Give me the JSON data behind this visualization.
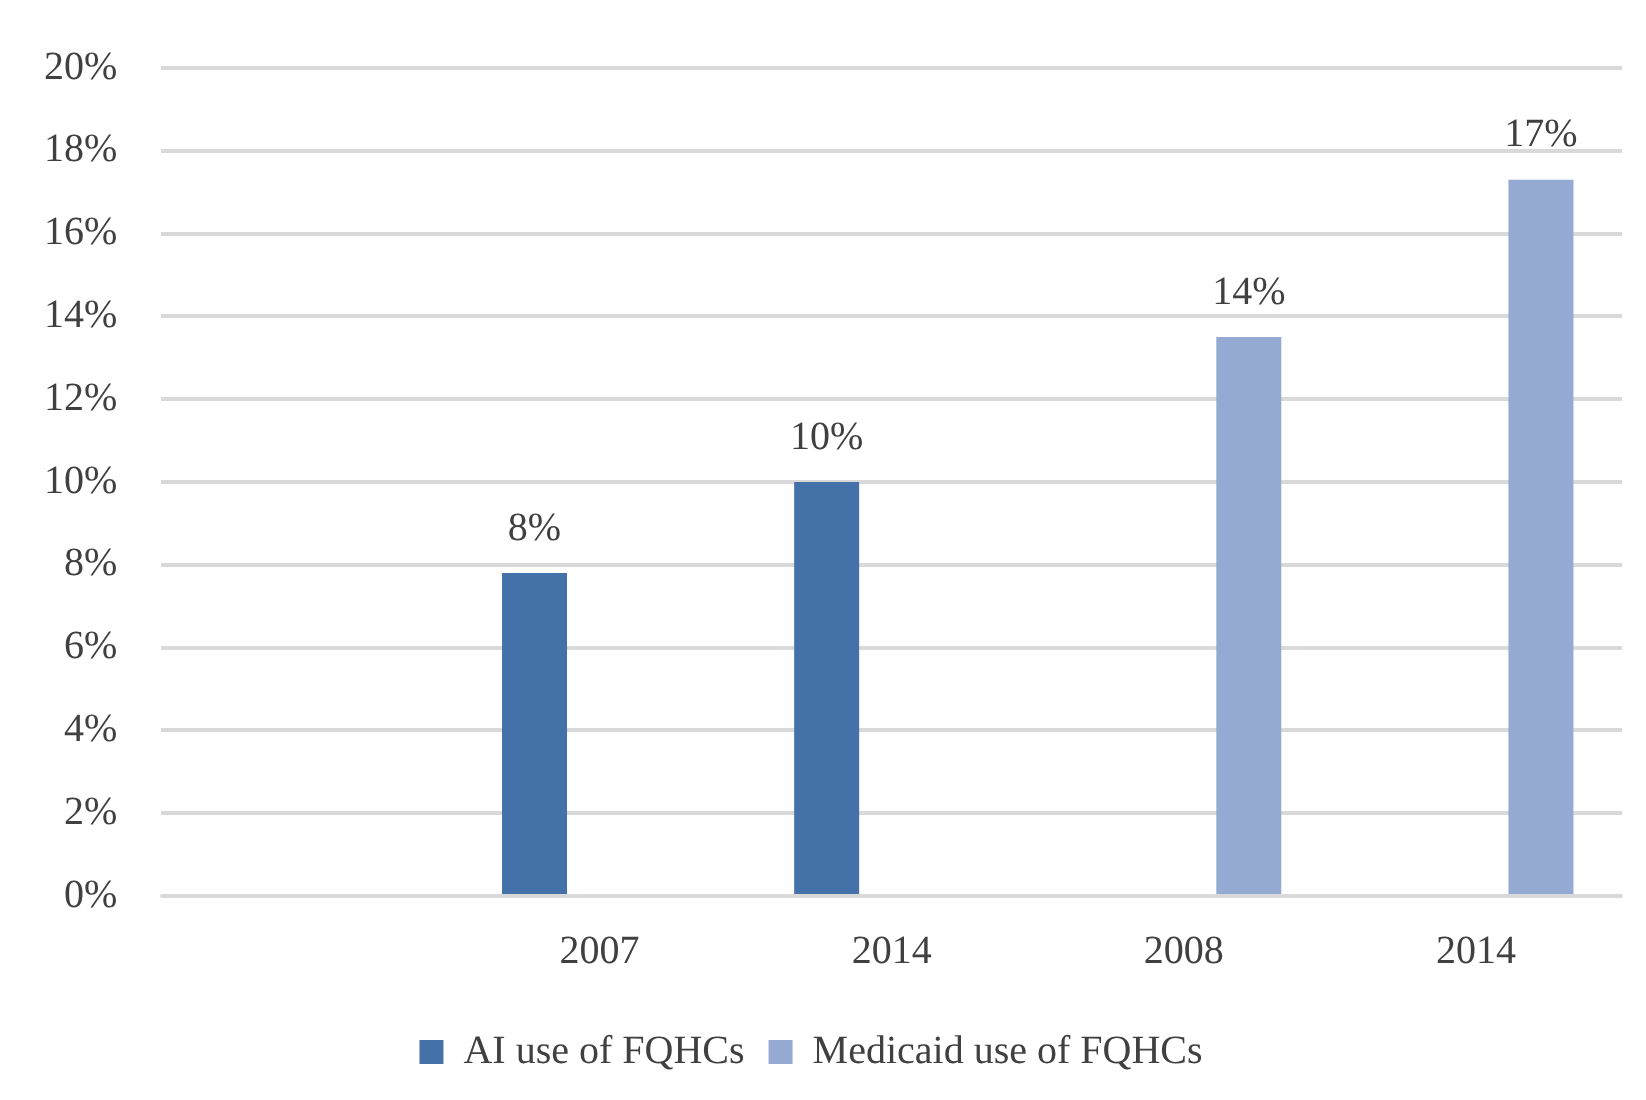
{
  "chart_data": {
    "type": "bar",
    "categories": [
      null,
      "2007",
      "2014",
      "2008",
      "2014"
    ],
    "series": [
      {
        "name": "AI use of FQHCs",
        "color": "#4472a8",
        "values": [
          null,
          7.8,
          10.0,
          null,
          null
        ],
        "value_labels": [
          null,
          "8%",
          "10%",
          null,
          null
        ]
      },
      {
        "name": "Medicaid use of FQHCs",
        "color": "#95aad3",
        "values": [
          null,
          null,
          null,
          13.5,
          17.3
        ],
        "value_labels": [
          null,
          null,
          null,
          "14%",
          "17%"
        ]
      }
    ],
    "ylim": [
      0,
      20
    ],
    "yticks": [
      {
        "value": 0,
        "label": "0%"
      },
      {
        "value": 2,
        "label": "2%"
      },
      {
        "value": 4,
        "label": "4%"
      },
      {
        "value": 6,
        "label": "6%"
      },
      {
        "value": 8,
        "label": "8%"
      },
      {
        "value": 10,
        "label": "10%"
      },
      {
        "value": 12,
        "label": "12%"
      },
      {
        "value": 14,
        "label": "14%"
      },
      {
        "value": 16,
        "label": "16%"
      },
      {
        "value": 18,
        "label": "18%"
      },
      {
        "value": 20,
        "label": "20%"
      }
    ],
    "grid": "y",
    "legend": "bottom"
  }
}
